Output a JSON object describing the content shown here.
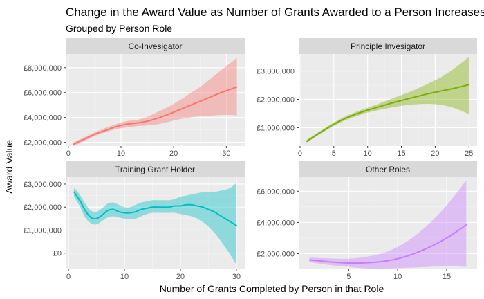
{
  "chart_data": {
    "type": "line",
    "title": "Change in the Award Value as Number of Grants Awarded to a Person Increases",
    "subtitle": "Grouped by Person Role",
    "xlabel": "Number of Grants Completed by Person in that Role",
    "ylabel": "Award Value",
    "grid": true,
    "panels": [
      {
        "name": "Co-Invesigator",
        "color": "#F8766D",
        "xlim": [
          -0.5,
          33.5
        ],
        "ylim": [
          1700000,
          9100000
        ],
        "x_ticks": [
          0,
          10,
          20,
          30
        ],
        "y_ticks": [
          2000000,
          4000000,
          6000000,
          8000000
        ],
        "y_tick_labels": [
          "£2,000,000",
          "£4,000,000",
          "£6,000,000",
          "£8,000,000"
        ],
        "x": [
          1,
          3,
          5,
          7,
          9,
          11,
          13,
          15,
          17,
          19,
          21,
          23,
          25,
          27,
          29,
          31,
          32
        ],
        "fit": [
          1850000,
          2250000,
          2650000,
          2950000,
          3250000,
          3450000,
          3550000,
          3700000,
          3950000,
          4250000,
          4600000,
          4950000,
          5300000,
          5650000,
          6000000,
          6300000,
          6450000
        ],
        "lower": [
          1700000,
          2100000,
          2500000,
          2800000,
          3050000,
          3200000,
          3300000,
          3350000,
          3450000,
          3650000,
          3850000,
          4000000,
          4100000,
          4150000,
          4200000,
          4200000,
          4150000
        ],
        "upper": [
          2000000,
          2400000,
          2800000,
          3150000,
          3450000,
          3700000,
          3800000,
          4050000,
          4450000,
          4850000,
          5350000,
          5900000,
          6450000,
          7100000,
          7800000,
          8450000,
          8800000
        ]
      },
      {
        "name": "Principle Invesigator",
        "color": "#7CAE00",
        "xlim": [
          -0.2,
          26.2
        ],
        "ylim": [
          350000,
          3600000
        ],
        "x_ticks": [
          0,
          5,
          10,
          15,
          20,
          25
        ],
        "y_ticks": [
          1000000,
          2000000,
          3000000
        ],
        "y_tick_labels": [
          "£1,000,000",
          "£2,000,000",
          "£3,000,000"
        ],
        "x": [
          1,
          3,
          5,
          7,
          9,
          11,
          13,
          15,
          17,
          19,
          21,
          23,
          25
        ],
        "fit": [
          520000,
          830000,
          1120000,
          1360000,
          1540000,
          1690000,
          1830000,
          1960000,
          2080000,
          2200000,
          2300000,
          2400000,
          2520000
        ],
        "lower": [
          470000,
          780000,
          1060000,
          1290000,
          1460000,
          1590000,
          1690000,
          1770000,
          1820000,
          1840000,
          1800000,
          1680000,
          1480000
        ],
        "upper": [
          570000,
          880000,
          1180000,
          1430000,
          1620000,
          1790000,
          1970000,
          2150000,
          2340000,
          2560000,
          2800000,
          3120000,
          3500000
        ]
      },
      {
        "name": "Training Grant Holder",
        "color": "#00BFC4",
        "xlim": [
          -0.5,
          31.5
        ],
        "ylim": [
          -700000,
          3300000
        ],
        "x_ticks": [
          0,
          10,
          20,
          30
        ],
        "y_ticks": [
          0,
          1000000,
          2000000,
          3000000
        ],
        "y_tick_labels": [
          "£0",
          "£1,000,000",
          "£2,000,000",
          "£3,000,000"
        ],
        "x": [
          1,
          2,
          3,
          4,
          5,
          6,
          7,
          8,
          9,
          10,
          11,
          12,
          13,
          14,
          15,
          16,
          17,
          18,
          19,
          20,
          21,
          22,
          23,
          24,
          25,
          26,
          27,
          28,
          29,
          30
        ],
        "fit": [
          2650000,
          2300000,
          1850000,
          1550000,
          1500000,
          1650000,
          1850000,
          1900000,
          1800000,
          1750000,
          1750000,
          1800000,
          1900000,
          1950000,
          2000000,
          2000000,
          2000000,
          2000000,
          2050000,
          2050000,
          2100000,
          2100000,
          2050000,
          2000000,
          1900000,
          1800000,
          1650000,
          1500000,
          1350000,
          1200000
        ],
        "lower": [
          2450000,
          2050000,
          1550000,
          1300000,
          1250000,
          1400000,
          1550000,
          1600000,
          1550000,
          1500000,
          1500000,
          1500000,
          1600000,
          1700000,
          1750000,
          1750000,
          1750000,
          1750000,
          1750000,
          1700000,
          1650000,
          1600000,
          1500000,
          1350000,
          1150000,
          900000,
          600000,
          250000,
          -100000,
          -500000
        ],
        "upper": [
          2850000,
          2550000,
          2150000,
          1850000,
          1800000,
          1950000,
          2150000,
          2200000,
          2100000,
          2000000,
          2000000,
          2100000,
          2200000,
          2250000,
          2300000,
          2300000,
          2300000,
          2300000,
          2350000,
          2450000,
          2500000,
          2550000,
          2600000,
          2650000,
          2650000,
          2650000,
          2700000,
          2750000,
          2850000,
          3050000
        ]
      },
      {
        "name": "Other Roles",
        "color": "#C77CFF",
        "xlim": [
          -0.1,
          18.1
        ],
        "ylim": [
          1000000,
          6900000
        ],
        "x_ticks": [
          5,
          10,
          15
        ],
        "y_ticks": [
          2000000,
          4000000,
          6000000
        ],
        "y_tick_labels": [
          "£2,000,000",
          "£4,000,000",
          "£6,000,000"
        ],
        "x": [
          1,
          3,
          5,
          7,
          9,
          11,
          13,
          15,
          17
        ],
        "fit": [
          1600000,
          1480000,
          1400000,
          1420000,
          1550000,
          1850000,
          2350000,
          3000000,
          3850000
        ],
        "lower": [
          1450000,
          1280000,
          1150000,
          1050000,
          1050000,
          1100000,
          1150000,
          1200000,
          1150000
        ],
        "upper": [
          1750000,
          1700000,
          1680000,
          1820000,
          2150000,
          2800000,
          3800000,
          5100000,
          6700000
        ]
      }
    ]
  }
}
